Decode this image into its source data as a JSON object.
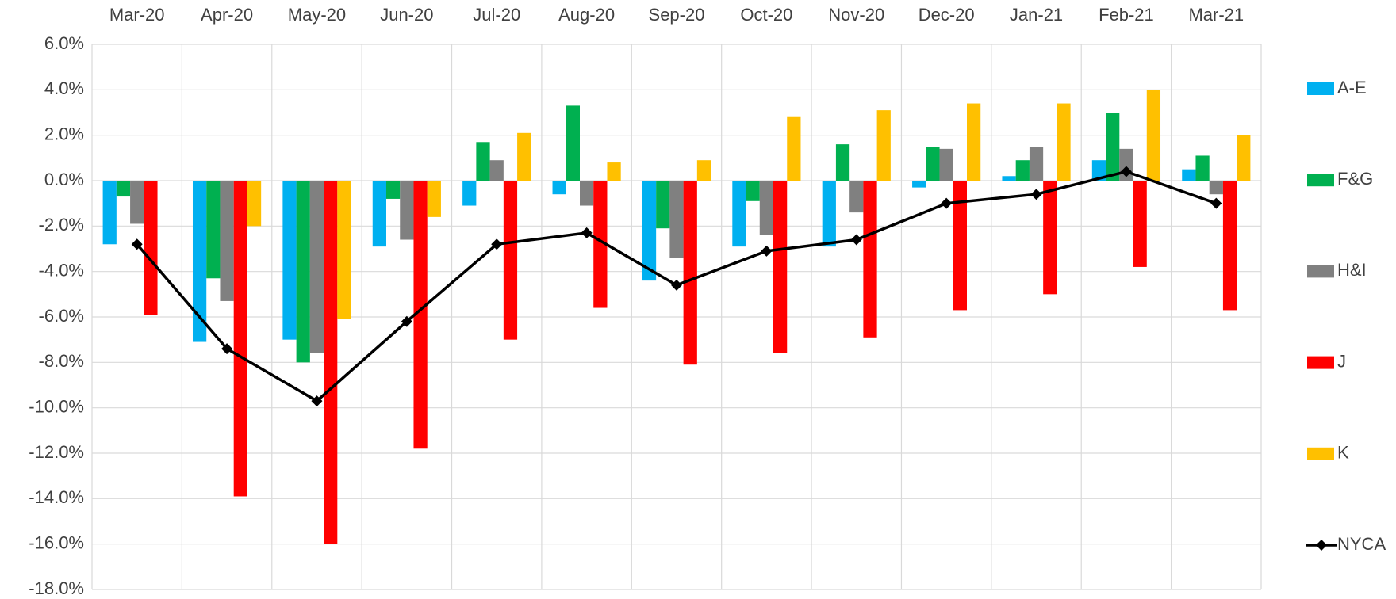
{
  "chart_data": {
    "type": "bar",
    "categories": [
      "Mar-20",
      "Apr-20",
      "May-20",
      "Jun-20",
      "Jul-20",
      "Aug-20",
      "Sep-20",
      "Oct-20",
      "Nov-20",
      "Dec-20",
      "Jan-21",
      "Feb-21",
      "Mar-21"
    ],
    "series": [
      {
        "name": "A-E",
        "type": "bar",
        "color": "#00b0f0",
        "values": [
          -2.8,
          -7.1,
          -7.0,
          -2.9,
          -1.1,
          -0.6,
          -4.4,
          -2.9,
          -2.9,
          -0.3,
          0.2,
          0.9,
          0.5
        ]
      },
      {
        "name": "F&G",
        "type": "bar",
        "color": "#00b050",
        "values": [
          -0.7,
          -4.3,
          -8.0,
          -0.8,
          1.7,
          3.3,
          -2.1,
          -0.9,
          1.6,
          1.5,
          0.9,
          3.0,
          1.1
        ]
      },
      {
        "name": "H&I",
        "type": "bar",
        "color": "#808080",
        "values": [
          -1.9,
          -5.3,
          -7.6,
          -2.6,
          0.9,
          -1.1,
          -3.4,
          -2.4,
          -1.4,
          1.4,
          1.5,
          1.4,
          -0.6
        ]
      },
      {
        "name": "J",
        "type": "bar",
        "color": "#ff0000",
        "values": [
          -5.9,
          -13.9,
          -16.0,
          -11.8,
          -7.0,
          -5.6,
          -8.1,
          -7.6,
          -6.9,
          -5.7,
          -5.0,
          -3.8,
          -5.7
        ]
      },
      {
        "name": "K",
        "type": "bar",
        "color": "#ffc000",
        "values": [
          null,
          -2.0,
          -6.1,
          -1.6,
          2.1,
          0.8,
          0.9,
          2.8,
          3.1,
          3.4,
          3.4,
          4.0,
          2.0
        ]
      },
      {
        "name": "NYCA",
        "type": "line",
        "color": "#000000",
        "values": [
          -2.8,
          -7.4,
          -9.7,
          -6.2,
          -2.8,
          -2.3,
          -4.6,
          -3.1,
          -2.6,
          -1.0,
          -0.6,
          0.4,
          -1.0
        ]
      }
    ],
    "ylim": [
      -18,
      6
    ],
    "yticks": [
      {
        "value": -18,
        "label": "-18.0%"
      },
      {
        "value": -16,
        "label": "-16.0%"
      },
      {
        "value": -14,
        "label": "-14.0%"
      },
      {
        "value": -12,
        "label": "-12.0%"
      },
      {
        "value": -10,
        "label": "-10.0%"
      },
      {
        "value": -8,
        "label": "-8.0%"
      },
      {
        "value": -6,
        "label": "-6.0%"
      },
      {
        "value": -4,
        "label": "-4.0%"
      },
      {
        "value": -2,
        "label": "-2.0%"
      },
      {
        "value": 0,
        "label": "0.0%"
      },
      {
        "value": 2,
        "label": "2.0%"
      },
      {
        "value": 4,
        "label": "4.0%"
      },
      {
        "value": 6,
        "label": "6.0%"
      }
    ],
    "grid": true,
    "legend": "right"
  }
}
